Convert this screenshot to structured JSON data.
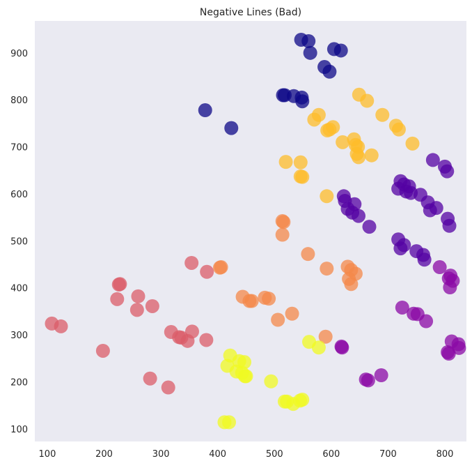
{
  "chart_data": {
    "type": "scatter",
    "title": "Negative Lines (Bad)",
    "xlabel": "",
    "ylabel": "",
    "xlim": [
      78,
      838
    ],
    "ylim": [
      73,
      968
    ],
    "x_ticks": [
      100,
      200,
      300,
      400,
      500,
      600,
      700,
      800
    ],
    "y_ticks": [
      100,
      200,
      300,
      400,
      500,
      600,
      700,
      800,
      900
    ],
    "grid": false,
    "background": "#eaeaf2",
    "point_opacity": 0.75,
    "series": [
      {
        "color": "#0d0887",
        "points": [
          [
            547,
            928
          ],
          [
            560,
            925
          ],
          [
            563,
            900
          ],
          [
            605,
            908
          ],
          [
            617,
            905
          ],
          [
            588,
            870
          ],
          [
            597,
            860
          ],
          [
            378,
            778
          ],
          [
            424,
            740
          ],
          [
            515,
            810
          ],
          [
            518,
            810
          ],
          [
            534,
            808
          ],
          [
            548,
            805
          ],
          [
            549,
            797
          ]
        ]
      },
      {
        "color": "#5402a3",
        "points": [
          [
            779,
            672
          ],
          [
            800,
            658
          ],
          [
            804,
            648
          ],
          [
            722,
            627
          ],
          [
            728,
            620
          ],
          [
            737,
            616
          ],
          [
            718,
            611
          ],
          [
            732,
            605
          ],
          [
            740,
            602
          ],
          [
            757,
            598
          ],
          [
            770,
            582
          ],
          [
            774,
            565
          ],
          [
            785,
            570
          ],
          [
            805,
            547
          ],
          [
            808,
            532
          ],
          [
            622,
            595
          ],
          [
            624,
            585
          ],
          [
            641,
            578
          ],
          [
            629,
            568
          ],
          [
            637,
            560
          ],
          [
            648,
            553
          ],
          [
            667,
            530
          ],
          [
            718,
            503
          ],
          [
            722,
            484
          ],
          [
            728,
            491
          ],
          [
            750,
            478
          ],
          [
            762,
            470
          ],
          [
            764,
            460
          ]
        ]
      },
      {
        "color": "#8b0aa5",
        "points": [
          [
            791,
            444
          ],
          [
            810,
            426
          ],
          [
            807,
            420
          ],
          [
            814,
            415
          ],
          [
            809,
            401
          ],
          [
            725,
            358
          ],
          [
            745,
            345
          ],
          [
            752,
            344
          ],
          [
            767,
            329
          ],
          [
            812,
            286
          ],
          [
            824,
            280
          ],
          [
            825,
            272
          ],
          [
            805,
            263
          ],
          [
            807,
            260
          ],
          [
            618,
            275
          ],
          [
            619,
            273
          ],
          [
            661,
            205
          ],
          [
            665,
            203
          ],
          [
            688,
            214
          ]
        ]
      },
      {
        "color": "#db5c68",
        "points": [
          [
            228,
            408
          ],
          [
            226,
            407
          ],
          [
            223,
            376
          ],
          [
            260,
            382
          ],
          [
            258,
            353
          ],
          [
            285,
            361
          ],
          [
            354,
            453
          ],
          [
            381,
            434
          ],
          [
            108,
            324
          ],
          [
            124,
            318
          ],
          [
            198,
            266
          ],
          [
            318,
            306
          ],
          [
            332,
            295
          ],
          [
            336,
            294
          ],
          [
            347,
            287
          ],
          [
            355,
            307
          ],
          [
            380,
            289
          ],
          [
            281,
            207
          ],
          [
            313,
            188
          ]
        ]
      },
      {
        "color": "#f48849",
        "points": [
          [
            404,
            443
          ],
          [
            406,
            444
          ],
          [
            444,
            381
          ],
          [
            456,
            372
          ],
          [
            460,
            372
          ],
          [
            483,
            379
          ],
          [
            490,
            377
          ],
          [
            514,
            542
          ],
          [
            516,
            540
          ],
          [
            514,
            513
          ],
          [
            559,
            472
          ],
          [
            592,
            441
          ],
          [
            629,
            445
          ],
          [
            635,
            438
          ],
          [
            643,
            430
          ],
          [
            631,
            419
          ],
          [
            635,
            408
          ],
          [
            531,
            345
          ],
          [
            506,
            332
          ],
          [
            590,
            296
          ]
        ]
      },
      {
        "color": "#febc2a",
        "points": [
          [
            649,
            811
          ],
          [
            663,
            798
          ],
          [
            578,
            768
          ],
          [
            570,
            758
          ],
          [
            593,
            735
          ],
          [
            597,
            737
          ],
          [
            603,
            742
          ],
          [
            690,
            768
          ],
          [
            714,
            745
          ],
          [
            719,
            737
          ],
          [
            743,
            707
          ],
          [
            620,
            710
          ],
          [
            640,
            716
          ],
          [
            643,
            704
          ],
          [
            647,
            700
          ],
          [
            645,
            685
          ],
          [
            648,
            678
          ],
          [
            671,
            682
          ],
          [
            520,
            668
          ],
          [
            546,
            667
          ],
          [
            546,
            637
          ],
          [
            549,
            636
          ],
          [
            592,
            595
          ]
        ]
      },
      {
        "color": "#f0f921",
        "points": [
          [
            422,
            256
          ],
          [
            417,
            234
          ],
          [
            438,
            244
          ],
          [
            447,
            242
          ],
          [
            433,
            222
          ],
          [
            443,
            219
          ],
          [
            448,
            212
          ],
          [
            450,
            212
          ],
          [
            494,
            201
          ],
          [
            561,
            285
          ],
          [
            578,
            273
          ],
          [
            518,
            158
          ],
          [
            522,
            158
          ],
          [
            533,
            153
          ],
          [
            545,
            160
          ],
          [
            549,
            162
          ],
          [
            412,
            114
          ],
          [
            420,
            114
          ]
        ]
      }
    ]
  }
}
